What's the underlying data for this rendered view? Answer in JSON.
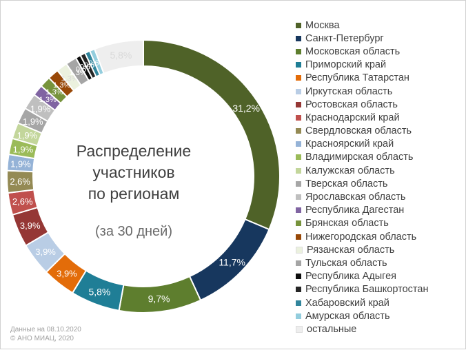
{
  "center": {
    "title_lines": [
      "Распределение",
      "участников",
      "по регионам"
    ],
    "subtitle": "(за 30 дней)"
  },
  "footnote": {
    "line1": "Данные на 08.10.2020",
    "line2": "© АНО МИАЦ, 2020"
  },
  "chart_data": {
    "type": "pie",
    "variant": "donut",
    "legend_position": "right",
    "slices": [
      {
        "name": "Москва",
        "value": 31.2,
        "label": "31,2%",
        "color": "#4f6228"
      },
      {
        "name": "Санкт-Петербург",
        "value": 11.7,
        "label": "11,7%",
        "color": "#17375e"
      },
      {
        "name": "Московская область",
        "value": 9.7,
        "label": "9,7%",
        "color": "#5e7e2e"
      },
      {
        "name": "Приморский край",
        "value": 5.8,
        "label": "5,8%",
        "color": "#1f7e96"
      },
      {
        "name": "Республика Татарстан",
        "value": 3.9,
        "label": "3,9%",
        "color": "#e36c09"
      },
      {
        "name": "Иркутская область",
        "value": 3.9,
        "label": "3,9%",
        "color": "#b9cde5"
      },
      {
        "name": "Ростовская область",
        "value": 3.9,
        "label": "3,9%",
        "color": "#953735"
      },
      {
        "name": "Краснодарский край",
        "value": 2.6,
        "label": "2,6%",
        "color": "#c0504d"
      },
      {
        "name": "Свердловская область",
        "value": 2.6,
        "label": "2,6%",
        "color": "#948a54"
      },
      {
        "name": "Красноярский край",
        "value": 1.9,
        "label": "1,9%",
        "color": "#95b3d7"
      },
      {
        "name": "Владимирская область",
        "value": 1.9,
        "label": "1,9%",
        "color": "#9bbb59"
      },
      {
        "name": "Калужская область",
        "value": 1.9,
        "label": "1,9%",
        "color": "#c3d69b"
      },
      {
        "name": "Тверская область",
        "value": 1.9,
        "label": "1,9%",
        "color": "#a6a6a6"
      },
      {
        "name": "Ярославская область",
        "value": 1.9,
        "label": "1,9%",
        "color": "#bfbfbf"
      },
      {
        "name": "Республика Дагестан",
        "value": 1.3,
        "label": "1,3%",
        "color": "#8064a2"
      },
      {
        "name": "Брянская область",
        "value": 1.3,
        "label": "1,3%",
        "color": "#77933c"
      },
      {
        "name": "Нижегородская область",
        "value": 1.3,
        "label": "1,3%",
        "color": "#984807"
      },
      {
        "name": "Рязанская область",
        "value": 1.3,
        "label": "1,3%",
        "color": "#ebf1de"
      },
      {
        "name": "Тульская область",
        "value": 1.3,
        "label": "1,3%",
        "color": "#a5a5a5"
      },
      {
        "name": "Республика Адыгея",
        "value": 0.6,
        "label": "0,6%",
        "color": "#0d0d0d"
      },
      {
        "name": "Республика Башкортостан",
        "value": 0.6,
        "label": "0,6%",
        "color": "#262626"
      },
      {
        "name": "Хабаровский край",
        "value": 0.6,
        "label": "0,6%",
        "color": "#31859c"
      },
      {
        "name": "Амурская область",
        "value": 0.6,
        "label": "0,6%",
        "color": "#93cddd"
      },
      {
        "name": "остальные",
        "value": 5.8,
        "label": "5,8%",
        "color": "#eeeeee"
      }
    ]
  }
}
